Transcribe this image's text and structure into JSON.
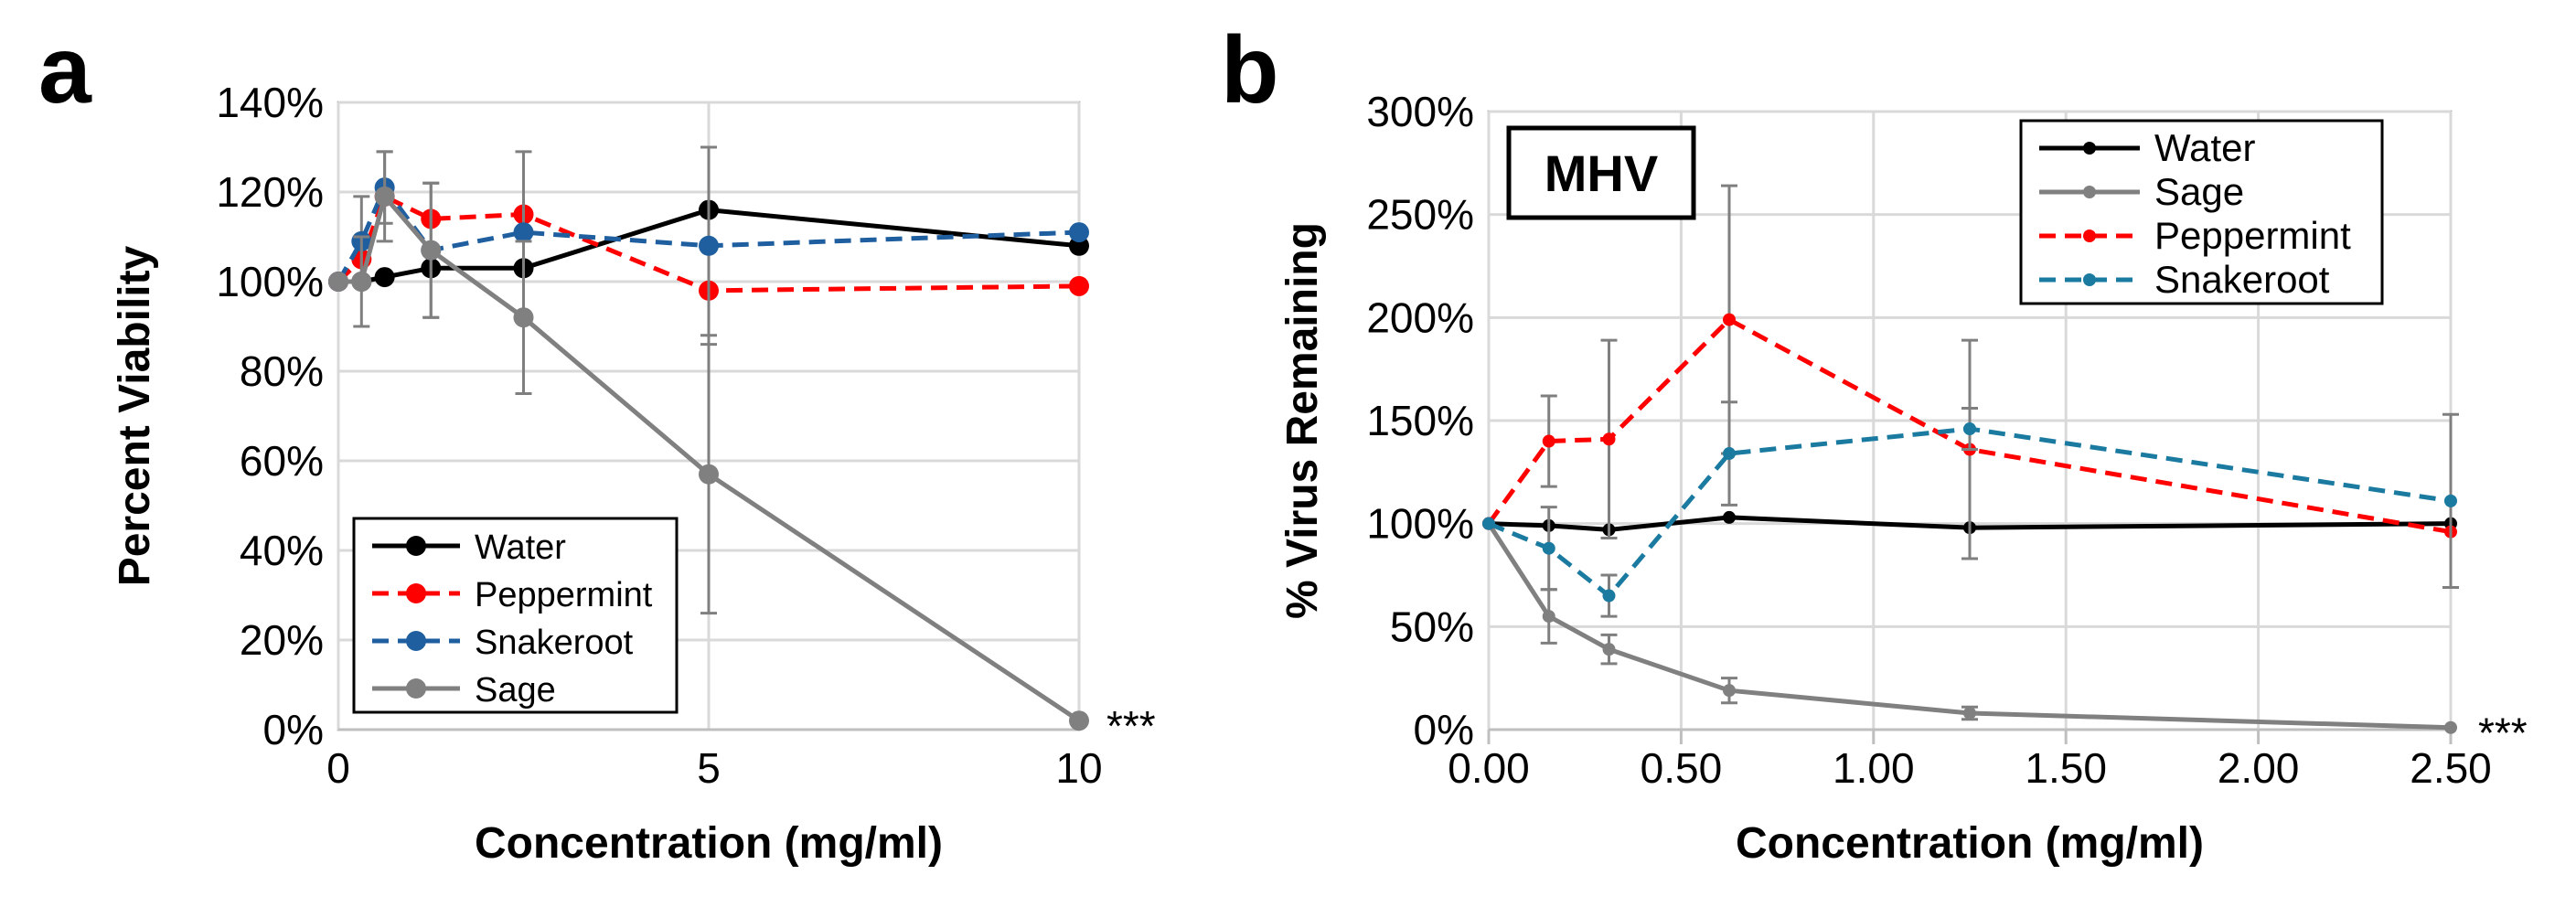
{
  "chart_data": [
    {
      "panel": "a",
      "type": "line",
      "xlabel": "Concentration (mg/ml)",
      "ylabel": "Percent Viability",
      "xlim": [
        0,
        10
      ],
      "ylim": [
        0,
        140
      ],
      "x_ticks": [
        0,
        5,
        10
      ],
      "x_tick_labels": [
        "0",
        "5",
        "10"
      ],
      "y_ticks": [
        0,
        20,
        40,
        60,
        80,
        100,
        120,
        140
      ],
      "y_tick_labels": [
        "0%",
        "20%",
        "40%",
        "60%",
        "80%",
        "100%",
        "120%",
        "140%"
      ],
      "grid": true,
      "legend_position": "bottom-left",
      "annotation": "***",
      "series": [
        {
          "name": "Water",
          "color": "#000000",
          "dash": "solid",
          "x": [
            0,
            0.3125,
            0.625,
            1.25,
            2.5,
            5,
            10
          ],
          "values": [
            100,
            100,
            101,
            103,
            103,
            116,
            108
          ],
          "errors": [
            0,
            0,
            0,
            0,
            0,
            0,
            0
          ]
        },
        {
          "name": "Peppermint",
          "color": "#ff0000",
          "dash": "dashed",
          "x": [
            0,
            0.3125,
            0.625,
            1.25,
            2.5,
            5,
            10
          ],
          "values": [
            100,
            105,
            119,
            114,
            115,
            98,
            99
          ],
          "errors": [
            0,
            0,
            0,
            0,
            0,
            0,
            0
          ]
        },
        {
          "name": "Snakeroot",
          "color": "#1f5fa0",
          "dash": "dashed",
          "x": [
            0,
            0.3125,
            0.625,
            1.25,
            2.5,
            5,
            10
          ],
          "values": [
            100,
            109,
            121,
            107,
            111,
            108,
            111
          ],
          "errors": [
            0,
            10,
            8,
            15,
            18,
            22,
            0
          ]
        },
        {
          "name": "Sage",
          "color": "#808080",
          "dash": "solid",
          "x": [
            0,
            0.3125,
            0.625,
            1.25,
            2.5,
            5,
            10
          ],
          "values": [
            100,
            100,
            119,
            107,
            92,
            57,
            2
          ],
          "errors": [
            0,
            10,
            10,
            15,
            17,
            31,
            1
          ]
        }
      ]
    },
    {
      "panel": "b",
      "type": "line",
      "xlabel": "Concentration (mg/ml)",
      "ylabel": "% Virus Remaining",
      "xlim": [
        0,
        2.5
      ],
      "ylim": [
        0,
        300
      ],
      "x_ticks": [
        0,
        0.5,
        1,
        1.5,
        2,
        2.5
      ],
      "x_tick_labels": [
        "0.00",
        "0.50",
        "1.00",
        "1.50",
        "2.00",
        "2.50"
      ],
      "y_ticks": [
        0,
        50,
        100,
        150,
        200,
        250,
        300
      ],
      "y_tick_labels": [
        "0%",
        "50%",
        "100%",
        "150%",
        "200%",
        "250%",
        "300%"
      ],
      "grid": true,
      "legend_position": "top-right",
      "tag": "MHV",
      "annotation": "***",
      "series": [
        {
          "name": "Water",
          "color": "#000000",
          "dash": "solid",
          "x": [
            0,
            0.15625,
            0.3125,
            0.625,
            1.25,
            2.5
          ],
          "values": [
            100,
            99,
            97,
            103,
            98,
            100
          ],
          "errors": [
            0,
            0,
            0,
            0,
            0,
            0
          ]
        },
        {
          "name": "Sage",
          "color": "#808080",
          "dash": "solid",
          "x": [
            0,
            0.15625,
            0.3125,
            0.625,
            1.25,
            2.5
          ],
          "values": [
            100,
            55,
            39,
            19,
            8,
            1
          ],
          "errors": [
            0,
            13,
            7,
            6,
            3,
            0
          ]
        },
        {
          "name": "Peppermint",
          "color": "#ff0000",
          "dash": "dashed",
          "x": [
            0,
            0.15625,
            0.3125,
            0.625,
            1.25,
            2.5
          ],
          "values": [
            100,
            140,
            141,
            199,
            136,
            96
          ],
          "errors": [
            0,
            22,
            48,
            65,
            53,
            0
          ]
        },
        {
          "name": "Snakeroot",
          "color": "#1a7aa0",
          "dash": "dashed",
          "x": [
            0,
            0.15625,
            0.3125,
            0.625,
            1.25,
            2.5
          ],
          "values": [
            100,
            88,
            65,
            134,
            146,
            111
          ],
          "errors": [
            0,
            20,
            10,
            25,
            10,
            42
          ]
        }
      ]
    }
  ],
  "panels": [
    {
      "letter": "a"
    },
    {
      "letter": "b"
    }
  ]
}
